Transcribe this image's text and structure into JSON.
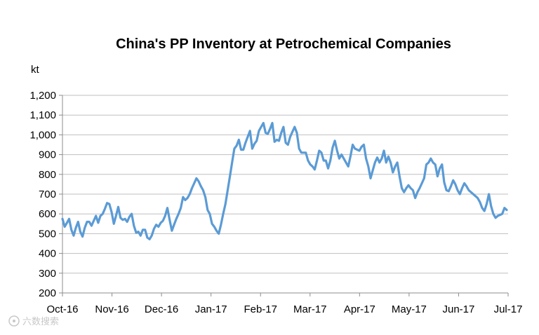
{
  "chart_data": {
    "type": "line",
    "title": "China's PP Inventory at Petrochemical Companies",
    "ylabel": "kt",
    "xlabel": "",
    "ylim": [
      200,
      1200
    ],
    "yticks": [
      200,
      300,
      400,
      500,
      600,
      700,
      800,
      900,
      1000,
      1100,
      1200
    ],
    "ytick_labels": [
      "200",
      "300",
      "400",
      "500",
      "600",
      "700",
      "800",
      "900",
      "1,000",
      "1,100",
      "1,200"
    ],
    "xticks": [
      "Oct-16",
      "Nov-16",
      "Dec-16",
      "Jan-17",
      "Feb-17",
      "Mar-17",
      "Apr-17",
      "May-17",
      "Jun-17",
      "Jul-17"
    ],
    "grid": "horizontal",
    "legend": "none",
    "series_color": "#5b9bd5",
    "series": [
      {
        "values": [
          575,
          535,
          555,
          575,
          520,
          490,
          530,
          560,
          510,
          485,
          530,
          560,
          560,
          540,
          565,
          590,
          555,
          590,
          600,
          625,
          655,
          650,
          610,
          550,
          590,
          635,
          580,
          570,
          575,
          560,
          585,
          600,
          540,
          505,
          510,
          490,
          520,
          520,
          480,
          472,
          490,
          525,
          545,
          535,
          555,
          565,
          590,
          630,
          570,
          515,
          545,
          575,
          600,
          630,
          685,
          670,
          680,
          700,
          730,
          755,
          780,
          765,
          740,
          720,
          685,
          620,
          600,
          550,
          535,
          515,
          500,
          545,
          600,
          650,
          720,
          790,
          860,
          930,
          945,
          975,
          925,
          925,
          960,
          990,
          1020,
          930,
          955,
          970,
          1020,
          1040,
          1060,
          1010,
          1005,
          1030,
          1060,
          965,
          975,
          970,
          1010,
          1040,
          960,
          950,
          990,
          1015,
          1040,
          1010,
          930,
          910,
          910,
          910,
          870,
          850,
          840,
          825,
          870,
          920,
          910,
          870,
          870,
          830,
          870,
          935,
          970,
          920,
          880,
          900,
          880,
          860,
          840,
          890,
          950,
          930,
          925,
          920,
          940,
          950,
          880,
          840,
          780,
          820,
          860,
          885,
          860,
          880,
          920,
          860,
          890,
          860,
          810,
          840,
          860,
          790,
          730,
          710,
          730,
          745,
          730,
          720,
          680,
          710,
          730,
          755,
          780,
          850,
          860,
          880,
          860,
          850,
          790,
          830,
          850,
          760,
          720,
          715,
          740,
          770,
          750,
          720,
          700,
          730,
          755,
          740,
          720,
          710,
          700,
          690,
          680,
          660,
          630,
          615,
          650,
          700,
          640,
          600,
          580,
          590,
          595,
          600,
          630,
          620
        ]
      }
    ]
  },
  "watermark": {
    "text": "六数搜索"
  }
}
